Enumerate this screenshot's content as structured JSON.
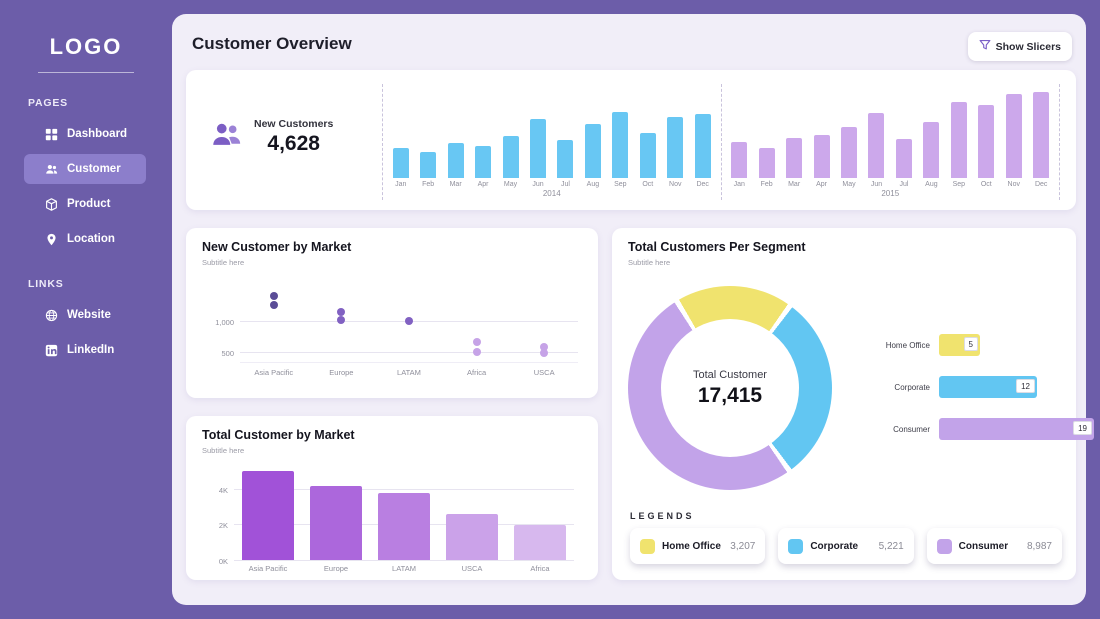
{
  "sidebar": {
    "logo": "LOGO",
    "sections": [
      {
        "label": "PAGES",
        "items": [
          {
            "label": "Dashboard",
            "icon": "grid-icon",
            "active": false
          },
          {
            "label": "Customer",
            "icon": "users-icon",
            "active": true
          },
          {
            "label": "Product",
            "icon": "box-icon",
            "active": false
          },
          {
            "label": "Location",
            "icon": "pin-icon",
            "active": false
          }
        ]
      },
      {
        "label": "LINKS",
        "items": [
          {
            "label": "Website",
            "icon": "globe-icon",
            "active": false
          },
          {
            "label": "LinkedIn",
            "icon": "linkedin-icon",
            "active": false
          }
        ]
      }
    ]
  },
  "header": {
    "title": "Customer Overview",
    "show_slicers": "Show Slicers"
  },
  "kpi": {
    "label": "New Customers",
    "value": "4,628"
  },
  "chart_data": [
    {
      "id": "new_customers_by_month",
      "type": "bar",
      "categories": [
        "Jan",
        "Feb",
        "Mar",
        "Apr",
        "May",
        "Jun",
        "Jul",
        "Aug",
        "Sep",
        "Oct",
        "Nov",
        "Dec"
      ],
      "series": [
        {
          "name": "2014",
          "color": "#68C7F3",
          "values": [
            111,
            98,
            131,
            121,
            158,
            222,
            142,
            202,
            249,
            169,
            229,
            239
          ]
        },
        {
          "name": "2015",
          "color": "#CCA8EB",
          "values": [
            135,
            111,
            152,
            162,
            192,
            246,
            148,
            212,
            286,
            273,
            317,
            323
          ]
        }
      ],
      "legend_position": "none",
      "grid": false
    },
    {
      "id": "new_customer_by_market",
      "type": "scatter",
      "title": "New Customer by Market",
      "subtitle": "Subtitle here",
      "ylim": [
        330,
        1630
      ],
      "yticks": [
        {
          "value": 1000,
          "label": "1,000"
        },
        {
          "value": 500,
          "label": "500"
        }
      ],
      "groups": [
        {
          "label": "Asia Pacific",
          "color": "#5B4D97",
          "values": [
            1400,
            1250
          ]
        },
        {
          "label": "Europe",
          "color": "#8161C2",
          "values": [
            1150,
            1020
          ]
        },
        {
          "label": "LATAM",
          "color": "#8161C2",
          "values": [
            1000
          ]
        },
        {
          "label": "Africa",
          "color": "#C6A3E7",
          "values": [
            650,
            500
          ]
        },
        {
          "label": "USCA",
          "color": "#C6A3E7",
          "values": [
            580,
            480
          ]
        }
      ],
      "grid": true
    },
    {
      "id": "total_customer_by_market",
      "type": "bar",
      "title": "Total Customer by Market",
      "subtitle": "Subtitle here",
      "ylim": [
        0,
        5600
      ],
      "yticks": [
        {
          "value": 4000,
          "label": "4K"
        },
        {
          "value": 2000,
          "label": "2K"
        },
        {
          "value": 0,
          "label": "0K"
        }
      ],
      "bars": [
        {
          "label": "Asia Pacific",
          "value": 5000,
          "color": "#A152D8"
        },
        {
          "label": "Europe",
          "value": 4150,
          "color": "#AC67DC"
        },
        {
          "label": "LATAM",
          "value": 3750,
          "color": "#B97FE1"
        },
        {
          "label": "USCA",
          "value": 2550,
          "color": "#CBA2E9"
        },
        {
          "label": "Africa",
          "value": 1965,
          "color": "#D7B8EE"
        }
      ],
      "grid": true
    },
    {
      "id": "total_customers_per_segment",
      "type": "pie",
      "title": "Total Customers Per Segment",
      "subtitle": "Subtitle here",
      "center_label": "Total Customer",
      "center_value": "17,415",
      "legends_label": "LEGENDS",
      "segments": [
        {
          "label": "Home Office",
          "value": 3207,
          "display": "3,207",
          "color": "#F0E36E",
          "bar_value": 5
        },
        {
          "label": "Corporate",
          "value": 5221,
          "display": "5,221",
          "color": "#62C6F2",
          "bar_value": 12
        },
        {
          "label": "Consumer",
          "value": 8987,
          "display": "8,987",
          "color": "#C2A3E9",
          "bar_value": 19
        }
      ]
    }
  ]
}
